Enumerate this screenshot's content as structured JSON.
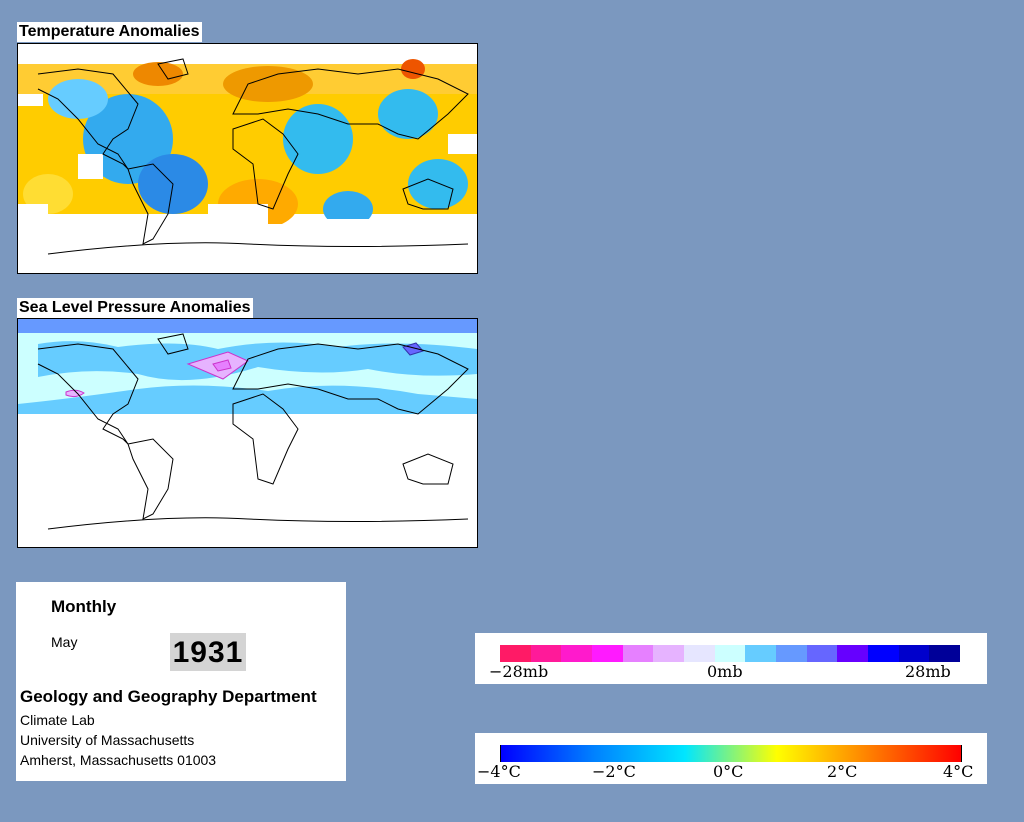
{
  "temperature_map": {
    "title": "Temperature Anomalies"
  },
  "pressure_map": {
    "title": "Sea Level Pressure Anomalies"
  },
  "info": {
    "period": "Monthly",
    "month": "May",
    "year": "1931",
    "department": "Geology and Geography Department",
    "lab": "Climate Lab",
    "university": "University of Massachusetts",
    "address": "Amherst, Massachusetts 01003"
  },
  "pressure_scale": {
    "labels": [
      "−28mb",
      "0mb",
      "28mb"
    ],
    "colors": [
      "#ff1a66",
      "#ff1a99",
      "#ff1acc",
      "#ff1aff",
      "#e680ff",
      "#e6b3ff",
      "#e6e6ff",
      "#ccffff",
      "#66ccff",
      "#6699ff",
      "#6666ff",
      "#6600ff",
      "#0000ff",
      "#0000cc",
      "#000099"
    ]
  },
  "temperature_scale": {
    "labels": [
      "−4°C",
      "−2°C",
      "0°C",
      "2°C",
      "4°C"
    ],
    "gradient": [
      "#0000ff",
      "#0080ff",
      "#00e6ff",
      "#ffff00",
      "#ff8000",
      "#ff0000"
    ]
  }
}
